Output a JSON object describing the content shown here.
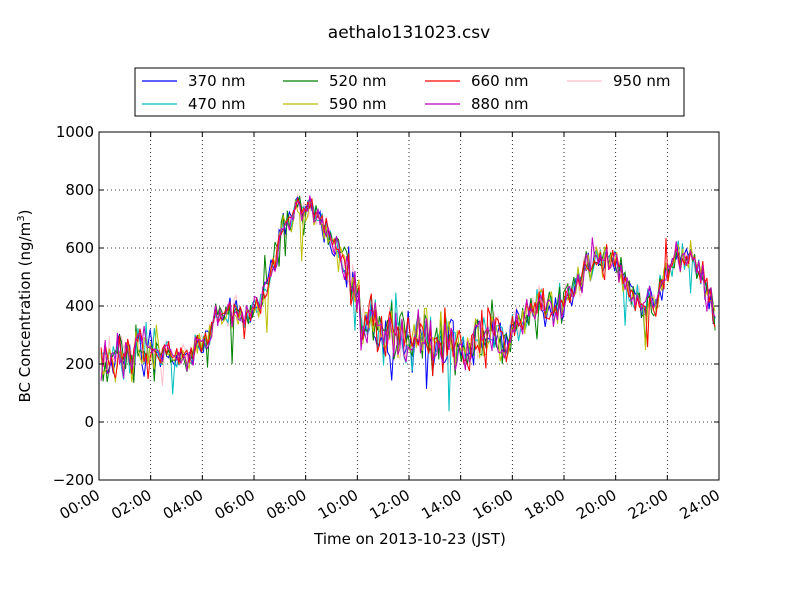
{
  "chart_data": {
    "type": "line",
    "title": "aethalo131023.csv",
    "xlabel": "Time on 2013-10-23 (JST)",
    "ylabel_main": "BC Concentration (ng/m",
    "ylabel_sup": "3",
    "ylabel_tail": ")",
    "xlim": [
      0,
      24
    ],
    "ylim": [
      -200,
      1000
    ],
    "x_unit": "hours",
    "x_ticks": [
      0,
      2,
      4,
      6,
      8,
      10,
      12,
      14,
      16,
      18,
      20,
      22,
      24
    ],
    "x_tick_labels": [
      "00:00",
      "02:00",
      "04:00",
      "06:00",
      "08:00",
      "10:00",
      "12:00",
      "14:00",
      "16:00",
      "18:00",
      "20:00",
      "22:00",
      "24:00"
    ],
    "y_ticks": [
      -200,
      0,
      200,
      400,
      600,
      800,
      1000
    ],
    "y_tick_labels": [
      "−200",
      "0",
      "200",
      "400",
      "600",
      "800",
      "1000"
    ],
    "grid": true,
    "legend_position": "top-center",
    "baseline": {
      "x": [
        0,
        0.5,
        1,
        1.5,
        2,
        2.5,
        3,
        3.5,
        4,
        4.5,
        5,
        5.5,
        6,
        6.5,
        7,
        7.5,
        8,
        8.5,
        9,
        9.5,
        10,
        10.5,
        11,
        11.5,
        12,
        12.5,
        13,
        13.5,
        14,
        14.5,
        15,
        15.5,
        16,
        16.5,
        17,
        17.5,
        18,
        18.5,
        19,
        19.5,
        20,
        20.5,
        21,
        21.5,
        22,
        22.5,
        23,
        23.5,
        23.9
      ],
      "y": [
        220,
        230,
        200,
        240,
        230,
        250,
        210,
        230,
        280,
        350,
        380,
        370,
        390,
        450,
        640,
        720,
        740,
        720,
        620,
        560,
        380,
        330,
        300,
        300,
        290,
        270,
        280,
        290,
        280,
        260,
        280,
        300,
        320,
        360,
        390,
        400,
        410,
        480,
        540,
        560,
        540,
        470,
        400,
        410,
        520,
        580,
        570,
        480,
        350
      ]
    },
    "series": [
      {
        "name": "370 nm",
        "color": "#0000ff"
      },
      {
        "name": "470 nm",
        "color": "#00bfbf"
      },
      {
        "name": "520 nm",
        "color": "#008000"
      },
      {
        "name": "590 nm",
        "color": "#bfbf00"
      },
      {
        "name": "660 nm",
        "color": "#ff0000"
      },
      {
        "name": "880 nm",
        "color": "#bf00bf"
      },
      {
        "name": "950 nm",
        "color": "#ffc0cb"
      }
    ]
  }
}
